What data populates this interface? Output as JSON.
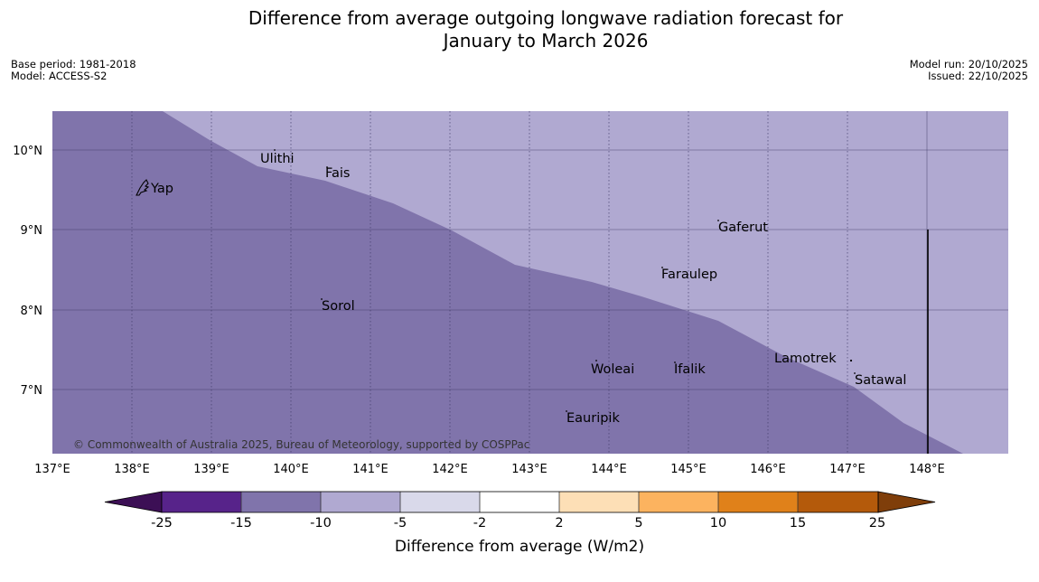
{
  "title": {
    "line1": "Difference from average outgoing longwave radiation forecast for",
    "line2": "January to March 2026"
  },
  "meta": {
    "base_period": "Base period: 1981-2018",
    "model": "Model: ACCESS-S2",
    "model_run": "Model run: 20/10/2025",
    "issued": "Issued: 22/10/2025"
  },
  "map": {
    "colors": {
      "dark_purple": "#8074ab",
      "light_purple": "#b0a9d1",
      "grid": "#3c3663",
      "land": "#000000"
    },
    "lat_labels": [
      "10°N",
      "9°N",
      "8°N",
      "7°N"
    ],
    "lon_labels": [
      "137°E",
      "138°E",
      "139°E",
      "140°E",
      "141°E",
      "142°E",
      "143°E",
      "144°E",
      "145°E",
      "146°E",
      "147°E",
      "148°E"
    ],
    "places": [
      "Yap",
      "Ulithi",
      "Fais",
      "Gaferut",
      "Faraulep",
      "Sorol",
      "Woleai",
      "Ifalik",
      "Lamotrek",
      "Satawal",
      "Eauripik"
    ],
    "copyright": "© Commonwealth of Australia 2025, Bureau of Meteorology, supported by COSPPac"
  },
  "colorbar": {
    "ticks": [
      "-25",
      "-15",
      "-10",
      "-5",
      "-2",
      "2",
      "5",
      "10",
      "15",
      "25"
    ],
    "colors": [
      "#57238a",
      "#8074ab",
      "#b0a9d1",
      "#d9d9ea",
      "#ffffff",
      "#fddfb6",
      "#fcb35f",
      "#e0811a",
      "#b45a0b"
    ],
    "under_color": "#3c0f55",
    "over_color": "#7f3e0a",
    "title": "Difference from average (W/m2)"
  }
}
